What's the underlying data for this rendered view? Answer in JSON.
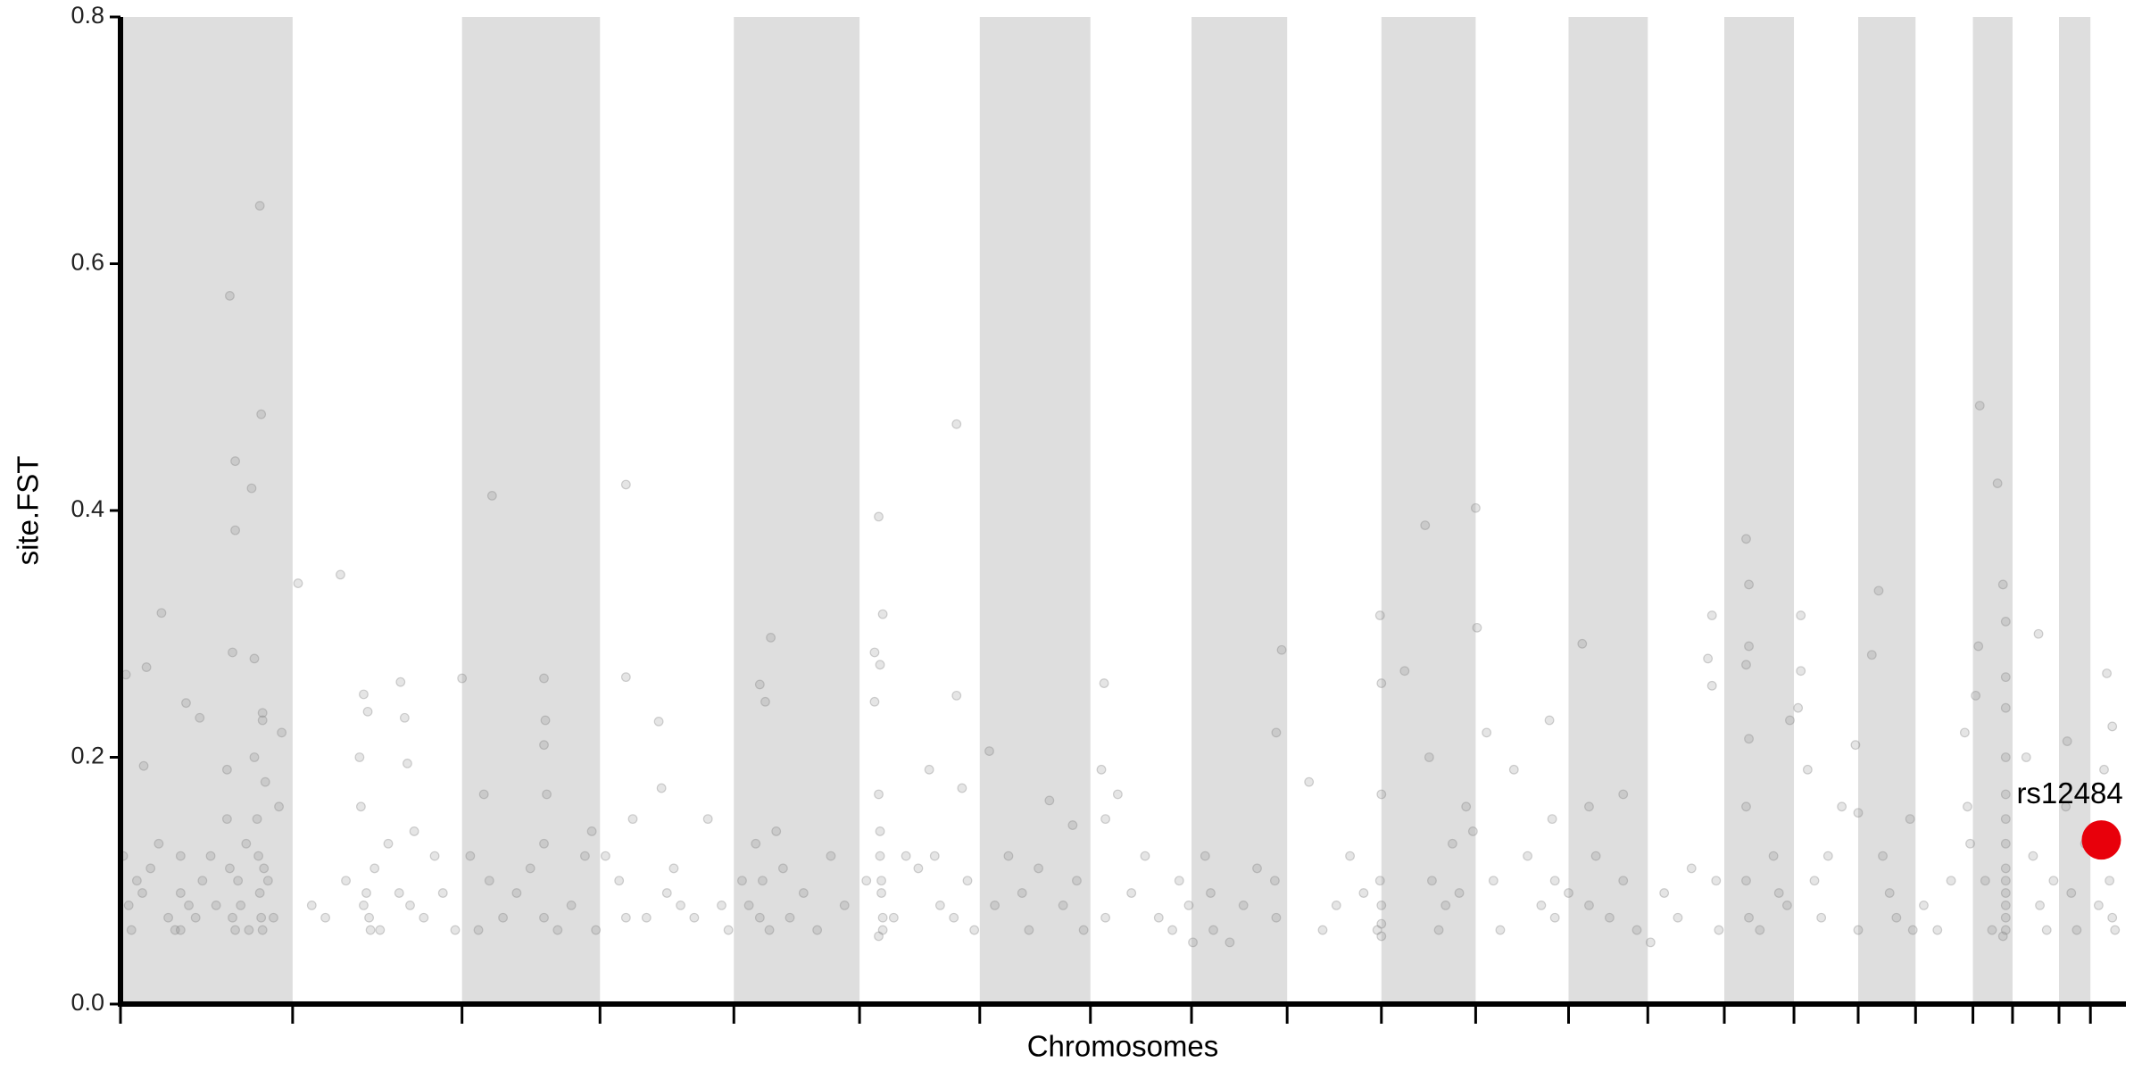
{
  "chart_data": {
    "type": "manhattan",
    "xlabel": "Chromosomes",
    "ylabel": "site.FST",
    "xlim": [
      0,
      1468
    ],
    "ylim": [
      0,
      0.8
    ],
    "xticks": [
      0,
      126,
      250,
      351,
      449,
      541,
      629,
      710,
      784,
      854,
      923,
      992,
      1060,
      1118,
      1174,
      1225,
      1272,
      1314,
      1356,
      1385,
      1419,
      1442
    ],
    "yticks": [
      {
        "value": 0,
        "label": "0.0"
      },
      0.2,
      0.4,
      0.6,
      0.8
    ],
    "bands": [
      [
        0,
        126
      ],
      [
        250,
        351
      ],
      [
        449,
        541
      ],
      [
        629,
        710
      ],
      [
        784,
        854
      ],
      [
        923,
        992
      ],
      [
        1060,
        1118
      ],
      [
        1174,
        1225
      ],
      [
        1272,
        1314
      ],
      [
        1356,
        1385
      ],
      [
        1419,
        1442
      ]
    ],
    "band_color": "#dedede",
    "series": [
      {
        "color": "#7f7f7f",
        "x": [
          4,
          17,
          19,
          30,
          48,
          58,
          80,
          84,
          84,
          82,
          96,
          98,
          102,
          103,
          104,
          104,
          118,
          2,
          6,
          8,
          12,
          16,
          22,
          28,
          35,
          40,
          44,
          44,
          44,
          50,
          55,
          60,
          66,
          70,
          78,
          78,
          80,
          82,
          84,
          86,
          88,
          92,
          94,
          98,
          100,
          101,
          102,
          103,
          104,
          105,
          106,
          108,
          112,
          116,
          130,
          161,
          178,
          181,
          205,
          208,
          210,
          176,
          180,
          182,
          183,
          178,
          186,
          196,
          204,
          212,
          215,
          222,
          230,
          236,
          245,
          140,
          150,
          165,
          175,
          190,
          250,
          272,
          310,
          311,
          310,
          312,
          310,
          310,
          256,
          262,
          266,
          270,
          280,
          290,
          300,
          320,
          330,
          340,
          345,
          348,
          370,
          394,
          370,
          370,
          365,
          375,
          385,
          396,
          400,
          405,
          410,
          420,
          430,
          440,
          445,
          355,
          468,
          472,
          476,
          455,
          460,
          465,
          468,
          470,
          475,
          480,
          485,
          490,
          500,
          510,
          520,
          530,
          552,
          555,
          558,
          552,
          556,
          555,
          556,
          556,
          557,
          557,
          558,
          558,
          555,
          546,
          566,
          575,
          584,
          592,
          596,
          600,
          610,
          612,
          612,
          616,
          620,
          625,
          636,
          640,
          650,
          660,
          665,
          672,
          680,
          690,
          697,
          700,
          705,
          720,
          721,
          721,
          718,
          730,
          740,
          750,
          760,
          770,
          775,
          782,
          785,
          794,
          798,
          800,
          812,
          822,
          832,
          850,
          846,
          845,
          846,
          870,
          880,
          890,
          900,
          910,
          920,
          922,
          923,
          923,
          922,
          923,
          923,
          923,
          940,
          955,
          958,
          960,
          965,
          970,
          975,
          980,
          985,
          990,
          992,
          993,
          1000,
          1005,
          1010,
          1020,
          1030,
          1040,
          1046,
          1048,
          1050,
          1050,
          1060,
          1070,
          1075,
          1075,
          1080,
          1090,
          1100,
          1100,
          1110,
          1120,
          1130,
          1140,
          1150,
          1162,
          1165,
          1165,
          1168,
          1170,
          1190,
          1192,
          1192,
          1190,
          1192,
          1190,
          1190,
          1192,
          1200,
          1210,
          1214,
          1220,
          1222,
          1230,
          1230,
          1228,
          1235,
          1240,
          1245,
          1250,
          1260,
          1270,
          1272,
          1272,
          1282,
          1287,
          1290,
          1295,
          1300,
          1310,
          1312,
          1320,
          1330,
          1340,
          1350,
          1352,
          1354,
          1361,
          1360,
          1358,
          1374,
          1378,
          1380,
          1380,
          1380,
          1380,
          1380,
          1380,
          1380,
          1380,
          1380,
          1380,
          1380,
          1380,
          1380,
          1378,
          1365,
          1370,
          1404,
          1395,
          1400,
          1405,
          1410,
          1415,
          1425,
          1424,
          1428,
          1432,
          1438,
          1454,
          1458,
          1452,
          1455,
          1456,
          1458,
          1460,
          1448
        ],
        "values": [
          0.267,
          0.193,
          0.273,
          0.317,
          0.244,
          0.232,
          0.574,
          0.44,
          0.384,
          0.285,
          0.418,
          0.28,
          0.647,
          0.478,
          0.236,
          0.23,
          0.22,
          0.12,
          0.08,
          0.06,
          0.1,
          0.09,
          0.11,
          0.13,
          0.07,
          0.06,
          0.09,
          0.06,
          0.12,
          0.08,
          0.07,
          0.1,
          0.12,
          0.08,
          0.19,
          0.15,
          0.11,
          0.07,
          0.06,
          0.1,
          0.08,
          0.13,
          0.06,
          0.2,
          0.15,
          0.12,
          0.09,
          0.07,
          0.06,
          0.11,
          0.18,
          0.1,
          0.07,
          0.16,
          0.341,
          0.348,
          0.251,
          0.237,
          0.261,
          0.232,
          0.195,
          0.16,
          0.09,
          0.07,
          0.06,
          0.08,
          0.11,
          0.13,
          0.09,
          0.08,
          0.14,
          0.07,
          0.12,
          0.09,
          0.06,
          0.08,
          0.07,
          0.1,
          0.2,
          0.06,
          0.264,
          0.412,
          0.264,
          0.23,
          0.21,
          0.17,
          0.13,
          0.07,
          0.12,
          0.06,
          0.17,
          0.1,
          0.07,
          0.09,
          0.11,
          0.06,
          0.08,
          0.12,
          0.14,
          0.06,
          0.421,
          0.229,
          0.265,
          0.07,
          0.1,
          0.15,
          0.07,
          0.175,
          0.09,
          0.11,
          0.08,
          0.07,
          0.15,
          0.08,
          0.06,
          0.12,
          0.259,
          0.245,
          0.297,
          0.1,
          0.08,
          0.13,
          0.07,
          0.1,
          0.06,
          0.14,
          0.11,
          0.07,
          0.09,
          0.06,
          0.12,
          0.08,
          0.285,
          0.395,
          0.316,
          0.245,
          0.275,
          0.17,
          0.14,
          0.12,
          0.1,
          0.09,
          0.07,
          0.06,
          0.055,
          0.1,
          0.07,
          0.12,
          0.11,
          0.19,
          0.12,
          0.08,
          0.07,
          0.47,
          0.25,
          0.175,
          0.1,
          0.06,
          0.205,
          0.08,
          0.12,
          0.09,
          0.06,
          0.11,
          0.165,
          0.08,
          0.145,
          0.1,
          0.06,
          0.26,
          0.15,
          0.07,
          0.19,
          0.17,
          0.09,
          0.12,
          0.07,
          0.06,
          0.1,
          0.08,
          0.05,
          0.12,
          0.09,
          0.06,
          0.05,
          0.08,
          0.11,
          0.287,
          0.22,
          0.1,
          0.07,
          0.18,
          0.06,
          0.08,
          0.12,
          0.09,
          0.06,
          0.315,
          0.26,
          0.17,
          0.1,
          0.08,
          0.065,
          0.055,
          0.27,
          0.388,
          0.2,
          0.1,
          0.06,
          0.08,
          0.13,
          0.09,
          0.16,
          0.14,
          0.402,
          0.305,
          0.22,
          0.1,
          0.06,
          0.19,
          0.12,
          0.08,
          0.23,
          0.15,
          0.1,
          0.07,
          0.09,
          0.292,
          0.16,
          0.08,
          0.12,
          0.07,
          0.17,
          0.1,
          0.06,
          0.05,
          0.09,
          0.07,
          0.11,
          0.28,
          0.258,
          0.315,
          0.1,
          0.06,
          0.377,
          0.34,
          0.29,
          0.275,
          0.215,
          0.16,
          0.1,
          0.07,
          0.06,
          0.12,
          0.09,
          0.08,
          0.23,
          0.315,
          0.27,
          0.24,
          0.19,
          0.1,
          0.07,
          0.12,
          0.16,
          0.21,
          0.155,
          0.06,
          0.283,
          0.335,
          0.12,
          0.09,
          0.07,
          0.15,
          0.06,
          0.08,
          0.06,
          0.1,
          0.22,
          0.16,
          0.13,
          0.485,
          0.29,
          0.25,
          0.422,
          0.34,
          0.31,
          0.265,
          0.24,
          0.2,
          0.17,
          0.15,
          0.13,
          0.11,
          0.1,
          0.09,
          0.08,
          0.07,
          0.06,
          0.055,
          0.1,
          0.06,
          0.3,
          0.2,
          0.12,
          0.08,
          0.06,
          0.1,
          0.213,
          0.16,
          0.09,
          0.06,
          0.13,
          0.268,
          0.225,
          0.19,
          0.14,
          0.1,
          0.07,
          0.06,
          0.08
        ]
      }
    ],
    "highlight": {
      "label": "rs12484",
      "x": 1450,
      "y": 0.133,
      "color": "#e8000b"
    }
  }
}
